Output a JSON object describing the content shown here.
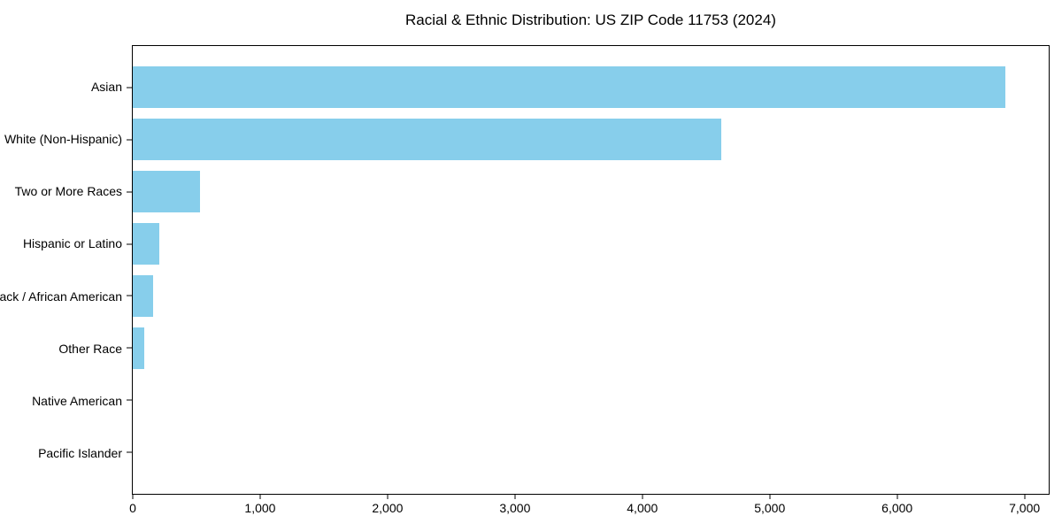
{
  "chart_data": {
    "type": "bar",
    "orientation": "horizontal",
    "title": "Racial & Ethnic Distribution: US ZIP Code 11753 (2024)",
    "xlabel": "",
    "ylabel": "",
    "categories": [
      "Asian",
      "White (Non-Hispanic)",
      "Two or More Races",
      "Hispanic or Latino",
      "Black / African American",
      "Other Race",
      "Native American",
      "Pacific Islander"
    ],
    "values": [
      6850,
      4620,
      530,
      205,
      160,
      90,
      0,
      0
    ],
    "xlim": [
      0,
      7190
    ],
    "xticks": [
      0,
      1000,
      2000,
      3000,
      4000,
      5000,
      6000,
      7000
    ],
    "xtick_labels": [
      "0",
      "1,000",
      "2,000",
      "3,000",
      "4,000",
      "5,000",
      "6,000",
      "7,000"
    ],
    "bar_color": "#87CEEB",
    "axis_color": "#000000",
    "background_color": "#ffffff",
    "grid": false,
    "legend": false
  }
}
